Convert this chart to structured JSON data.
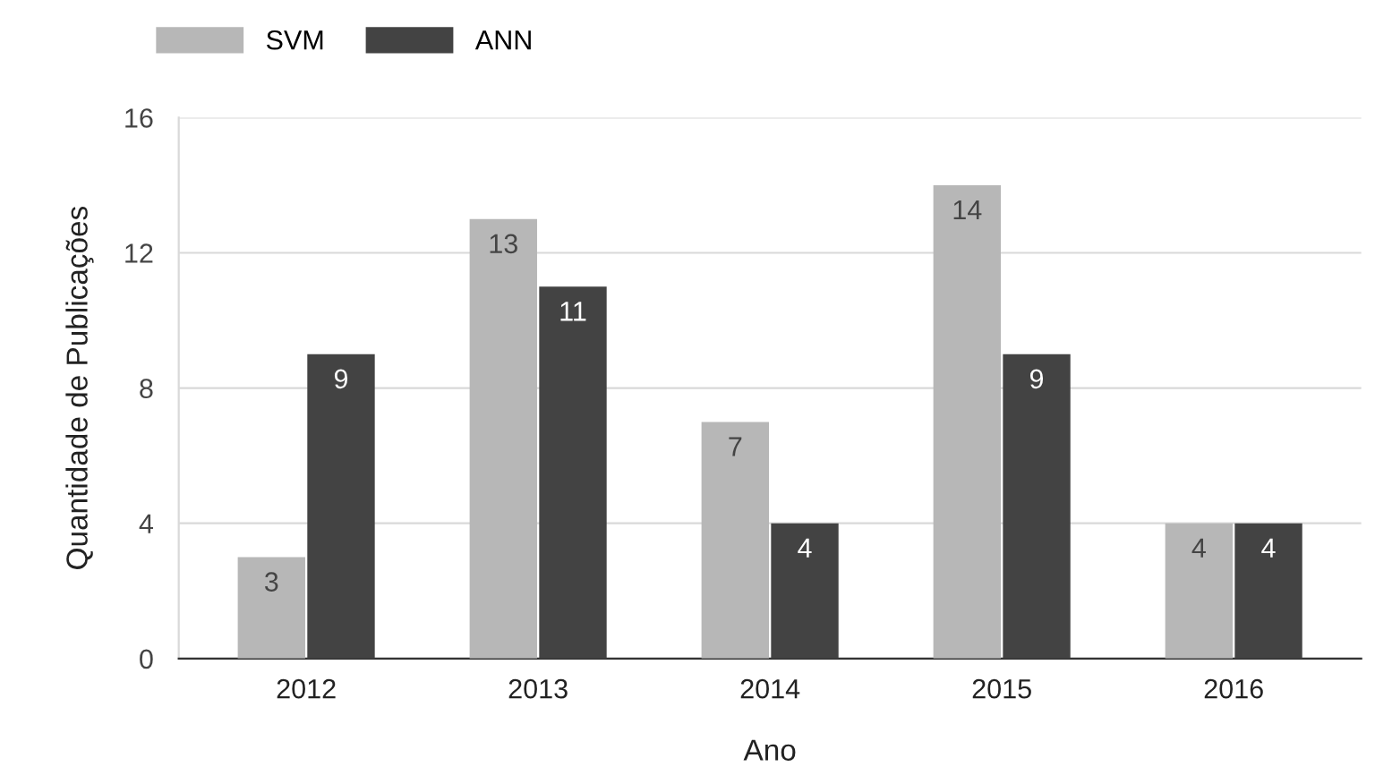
{
  "chart_data": {
    "type": "bar",
    "xlabel": "Ano",
    "ylabel": "Quantidade de Publicações",
    "categories": [
      "2012",
      "2013",
      "2014",
      "2015",
      "2016"
    ],
    "series": [
      {
        "name": "SVM",
        "color": "#b7b7b7",
        "values": [
          3,
          13,
          7,
          14,
          4
        ]
      },
      {
        "name": "ANN",
        "color": "#434343",
        "values": [
          9,
          11,
          4,
          9,
          4
        ]
      }
    ],
    "ylim": [
      0,
      16
    ],
    "yticks": [
      0,
      4,
      8,
      12,
      16
    ],
    "grid": "y",
    "legend": "top left",
    "data_labels": true
  }
}
